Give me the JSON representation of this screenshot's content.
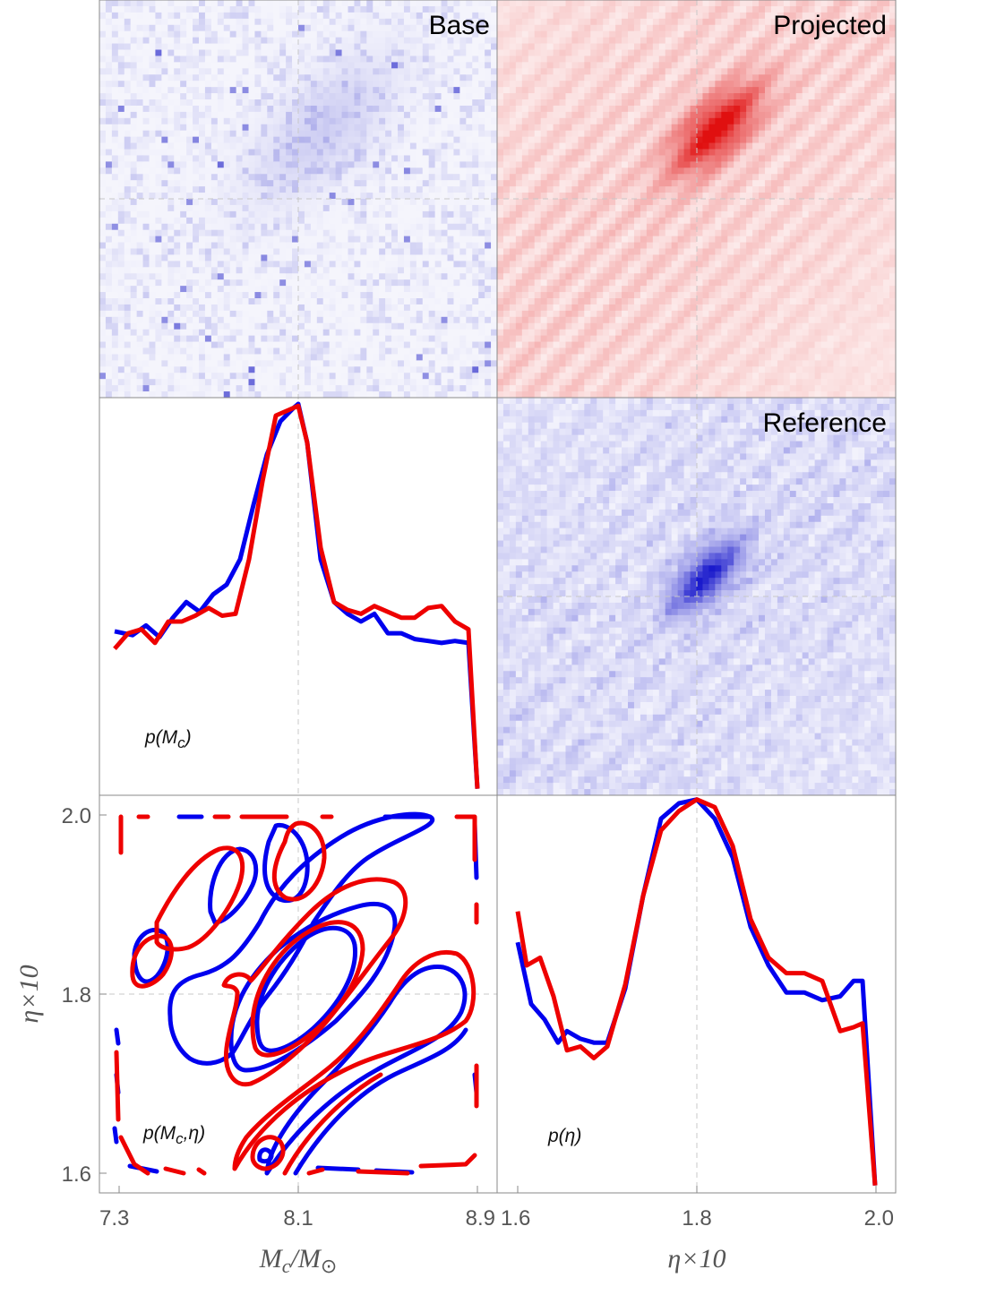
{
  "chart_data": [
    {
      "panel": "top-left",
      "type": "heatmap",
      "title": "Base",
      "color": "#3333cc",
      "xlim": [
        7.3,
        8.9
      ],
      "ylim": [
        1.6,
        2.0
      ],
      "peak": {
        "x": 8.2,
        "y": 1.87
      }
    },
    {
      "panel": "top-right",
      "type": "heatmap",
      "title": "Projected",
      "color": "#e01010",
      "xlim": [
        1.6,
        2.0
      ],
      "ylim": [
        1.6,
        2.0
      ],
      "peak": {
        "x": 1.82,
        "y": 1.87
      }
    },
    {
      "panel": "middle-right",
      "type": "heatmap",
      "title": "Reference",
      "color": "#1a1acc",
      "xlim": [
        1.6,
        2.0
      ],
      "ylim": [
        1.6,
        2.0
      ],
      "peak": {
        "x": 1.81,
        "y": 1.82
      }
    },
    {
      "panel": "middle-left",
      "type": "line",
      "label_base": "p(M",
      "label_sub": "c",
      "label_close": ")",
      "xlim": [
        7.3,
        8.9
      ],
      "ylim": [
        0,
        1
      ],
      "series": [
        {
          "color": "#0000ee",
          "x": [
            7.28,
            7.36,
            7.42,
            7.48,
            7.54,
            7.6,
            7.66,
            7.72,
            7.78,
            7.84,
            7.9,
            7.96,
            8.02,
            8.08,
            8.1,
            8.14,
            8.2,
            8.26,
            8.32,
            8.38,
            8.44,
            8.5,
            8.56,
            8.62,
            8.68,
            8.74,
            8.8,
            8.86,
            8.9
          ],
          "y": [
            0.415,
            0.405,
            0.43,
            0.4,
            0.45,
            0.49,
            0.465,
            0.51,
            0.535,
            0.6,
            0.74,
            0.87,
            0.955,
            0.99,
            1.0,
            0.9,
            0.6,
            0.49,
            0.46,
            0.44,
            0.46,
            0.41,
            0.41,
            0.395,
            0.39,
            0.385,
            0.39,
            0.385,
            0.01
          ]
        },
        {
          "color": "#ee0000",
          "x": [
            7.28,
            7.34,
            7.4,
            7.46,
            7.52,
            7.58,
            7.64,
            7.7,
            7.76,
            7.82,
            7.88,
            7.94,
            8.0,
            8.06,
            8.1,
            8.14,
            8.2,
            8.26,
            8.32,
            8.38,
            8.44,
            8.5,
            8.56,
            8.62,
            8.68,
            8.74,
            8.8,
            8.86,
            8.9
          ],
          "y": [
            0.37,
            0.41,
            0.42,
            0.385,
            0.44,
            0.44,
            0.455,
            0.475,
            0.455,
            0.46,
            0.6,
            0.8,
            0.97,
            0.985,
            0.995,
            0.9,
            0.63,
            0.49,
            0.47,
            0.46,
            0.48,
            0.465,
            0.45,
            0.45,
            0.475,
            0.48,
            0.44,
            0.42,
            0.01
          ]
        }
      ]
    },
    {
      "panel": "bottom-left",
      "type": "contour",
      "label_base": "p(M",
      "label_sub": "c",
      "label_mid": ",η)",
      "xlabel_base": "M",
      "xlabel_sub1": "c",
      "xlabel_slash": "/M",
      "xlabel_sub2": "⊙",
      "ylabel": "η×10",
      "x_ticks": [
        "7.3",
        "8.1",
        "8.9"
      ],
      "y_ticks": [
        "1.6",
        "1.8",
        "2.0"
      ],
      "xlim": [
        7.3,
        8.9
      ],
      "ylim": [
        1.6,
        2.0
      ],
      "colors": [
        "#0000ee",
        "#ee0000"
      ]
    },
    {
      "panel": "bottom-right",
      "type": "line",
      "label": "p(η)",
      "xlabel": "η×10",
      "x_ticks": [
        "1.6",
        "1.8",
        "2.0"
      ],
      "xlim": [
        1.6,
        2.0
      ],
      "ylim": [
        0,
        1
      ],
      "series": [
        {
          "color": "#0000ee",
          "x": [
            1.6,
            1.615,
            1.63,
            1.645,
            1.655,
            1.67,
            1.685,
            1.7,
            1.72,
            1.74,
            1.76,
            1.78,
            1.8,
            1.82,
            1.84,
            1.86,
            1.88,
            1.9,
            1.92,
            1.94,
            1.96,
            1.975,
            1.985,
            1.999
          ],
          "y": [
            0.64,
            0.48,
            0.44,
            0.38,
            0.41,
            0.39,
            0.38,
            0.38,
            0.52,
            0.76,
            0.96,
            1.0,
            1.01,
            0.96,
            0.86,
            0.68,
            0.58,
            0.51,
            0.51,
            0.49,
            0.5,
            0.54,
            0.54,
            0.01
          ]
        },
        {
          "color": "#ee0000",
          "x": [
            1.6,
            1.61,
            1.625,
            1.64,
            1.655,
            1.67,
            1.685,
            1.7,
            1.72,
            1.74,
            1.76,
            1.78,
            1.8,
            1.82,
            1.84,
            1.86,
            1.88,
            1.9,
            1.92,
            1.94,
            1.96,
            1.975,
            1.985,
            1.999
          ],
          "y": [
            0.72,
            0.58,
            0.6,
            0.5,
            0.36,
            0.37,
            0.34,
            0.37,
            0.53,
            0.76,
            0.93,
            0.98,
            1.01,
            0.99,
            0.89,
            0.7,
            0.6,
            0.56,
            0.56,
            0.54,
            0.41,
            0.42,
            0.43,
            0.01
          ]
        }
      ]
    }
  ]
}
